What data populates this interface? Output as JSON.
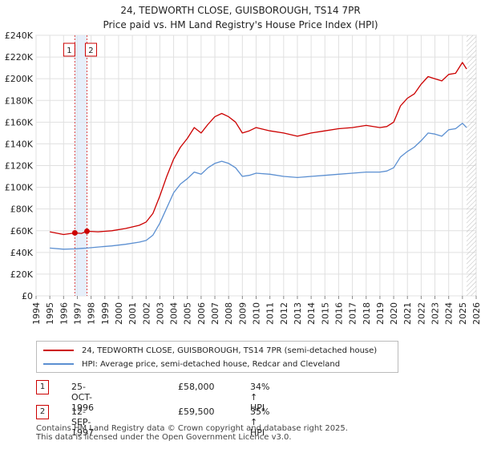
{
  "title_line1": "24, TEDWORTH CLOSE, GUISBOROUGH, TS14 7PR",
  "title_line2": "Price paid vs. HM Land Registry's House Price Index (HPI)",
  "legend": {
    "property": "24, TEDWORTH CLOSE, GUISBOROUGH, TS14 7PR (semi-detached house)",
    "hpi": "HPI: Average price, semi-detached house, Redcar and Cleveland"
  },
  "sales": [
    {
      "num": "1",
      "date": "25-OCT-1996",
      "price": "£58,000",
      "hpi_change": "34% ↑ HPI"
    },
    {
      "num": "2",
      "date": "12-SEP-1997",
      "price": "£59,500",
      "hpi_change": "35% ↑ HPI"
    }
  ],
  "footer_line1": "Contains HM Land Registry data © Crown copyright and database right 2025.",
  "footer_line2": "This data is licensed under the Open Government Licence v3.0.",
  "colors": {
    "property": "#cc0000",
    "hpi": "#5b8fd1",
    "grid": "#e0e0e0",
    "highlight": "#dde8f8"
  },
  "chart_data": {
    "type": "line",
    "title": "24, TEDWORTH CLOSE, GUISBOROUGH, TS14 7PR",
    "subtitle": "Price paid vs. HM Land Registry's House Price Index (HPI)",
    "xlabel": "",
    "ylabel": "",
    "xlim": [
      1994,
      2026
    ],
    "ylim": [
      0,
      240000
    ],
    "x_ticks": [
      1994,
      1995,
      1996,
      1997,
      1998,
      1999,
      2000,
      2001,
      2002,
      2003,
      2004,
      2005,
      2006,
      2007,
      2008,
      2009,
      2010,
      2011,
      2012,
      2013,
      2014,
      2015,
      2016,
      2017,
      2018,
      2019,
      2020,
      2021,
      2022,
      2023,
      2024,
      2025,
      2026
    ],
    "y_ticks": [
      0,
      20000,
      40000,
      60000,
      80000,
      100000,
      120000,
      140000,
      160000,
      180000,
      200000,
      220000,
      240000
    ],
    "y_tick_labels": [
      "£0",
      "£20K",
      "£40K",
      "£60K",
      "£80K",
      "£100K",
      "£120K",
      "£140K",
      "£160K",
      "£180K",
      "£200K",
      "£220K",
      "£240K"
    ],
    "grid": true,
    "data_end": 2025.3,
    "transactions": [
      {
        "label": "1",
        "x": 1996.82,
        "y": 58000
      },
      {
        "label": "2",
        "x": 1997.7,
        "y": 59500
      }
    ],
    "series": [
      {
        "name": "24, TEDWORTH CLOSE, GUISBOROUGH, TS14 7PR (semi-detached house)",
        "x": [
          1995,
          1996,
          1996.82,
          1997.3,
          1997.7,
          1998.5,
          1999.5,
          2000.5,
          2001.5,
          2002,
          2002.5,
          2003,
          2003.5,
          2004,
          2004.5,
          2005,
          2005.5,
          2006,
          2006.5,
          2007,
          2007.5,
          2008,
          2008.5,
          2009,
          2009.5,
          2010,
          2011,
          2012,
          2013,
          2014,
          2015,
          2016,
          2017,
          2018,
          2019,
          2019.5,
          2020,
          2020.5,
          2021,
          2021.5,
          2022,
          2022.5,
          2023,
          2023.5,
          2024,
          2024.5,
          2025,
          2025.3
        ],
        "values": [
          59000,
          56500,
          58000,
          57500,
          59500,
          59000,
          60000,
          62000,
          65000,
          68000,
          76000,
          92000,
          110000,
          126000,
          137000,
          145000,
          155000,
          150000,
          158000,
          165000,
          168000,
          165000,
          160000,
          150000,
          152000,
          155000,
          152000,
          150000,
          147000,
          150000,
          152000,
          154000,
          155000,
          157000,
          155000,
          156000,
          160000,
          175000,
          182000,
          186000,
          195000,
          202000,
          200000,
          198000,
          204000,
          205000,
          215000,
          209000
        ]
      },
      {
        "name": "HPI: Average price, semi-detached house, Redcar and Cleveland",
        "x": [
          1995,
          1996,
          1996.82,
          1997.3,
          1997.7,
          1998.5,
          1999.5,
          2000.5,
          2001.5,
          2002,
          2002.5,
          2003,
          2003.5,
          2004,
          2004.5,
          2005,
          2005.5,
          2006,
          2006.5,
          2007,
          2007.5,
          2008,
          2008.5,
          2009,
          2009.5,
          2010,
          2011,
          2012,
          2013,
          2014,
          2015,
          2016,
          2017,
          2018,
          2019,
          2019.5,
          2020,
          2020.5,
          2021,
          2021.5,
          2022,
          2022.5,
          2023,
          2023.5,
          2024,
          2024.5,
          2025,
          2025.3
        ],
        "values": [
          44000,
          43000,
          43300,
          43700,
          44000,
          45000,
          46000,
          47500,
          49500,
          51000,
          56000,
          67000,
          81000,
          95000,
          103000,
          108000,
          114000,
          112000,
          118000,
          122000,
          124000,
          122000,
          118000,
          110000,
          111000,
          113000,
          112000,
          110000,
          109000,
          110000,
          111000,
          112000,
          113000,
          114000,
          114000,
          115000,
          118000,
          128000,
          133000,
          137000,
          143000,
          150000,
          149000,
          147000,
          153000,
          154000,
          159000,
          155000
        ]
      }
    ]
  }
}
